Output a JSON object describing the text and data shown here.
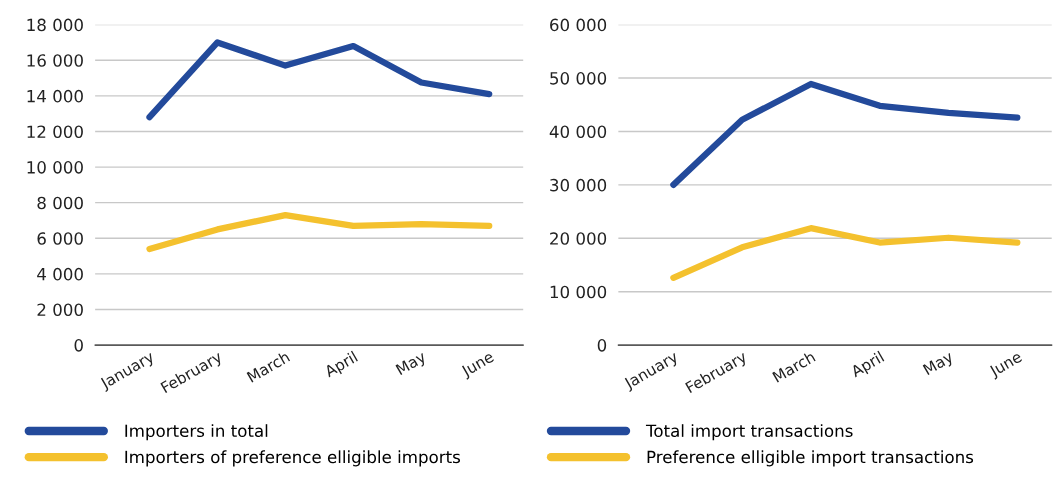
{
  "chart_data": [
    {
      "type": "line",
      "categories": [
        "January",
        "February",
        "March",
        "April",
        "May",
        "June"
      ],
      "series": [
        {
          "name": "Importers in total",
          "color": "#234a9b",
          "values": [
            12800,
            17000,
            15700,
            16800,
            14750,
            14100
          ]
        },
        {
          "name": "Importers of preference elligible imports",
          "color": "#f4c12e",
          "values": [
            5400,
            6500,
            7300,
            6700,
            6800,
            6700
          ]
        }
      ],
      "ylim": [
        0,
        18000
      ],
      "yticks": [
        0,
        {
          "value": 2000,
          "label": "2 000"
        },
        {
          "value": 4000,
          "label": "4 000"
        },
        {
          "value": 6000,
          "label": "6 000"
        },
        {
          "value": 8000,
          "label": "8 000"
        },
        {
          "value": 10000,
          "label": "10 000"
        },
        {
          "value": 12000,
          "label": "12 000"
        },
        {
          "value": 14000,
          "label": "14 000"
        },
        {
          "value": 16000,
          "label": "16 000"
        },
        {
          "value": 18000,
          "label": "18 000"
        }
      ],
      "grid": "y",
      "legend": "bottom",
      "marker": "none",
      "line_style": "solid"
    },
    {
      "type": "line",
      "categories": [
        "January",
        "February",
        "March",
        "April",
        "May",
        "June"
      ],
      "series": [
        {
          "name": "Total import transactions",
          "color": "#234a9b",
          "values": [
            30000,
            42200,
            48900,
            44800,
            43500,
            42600
          ]
        },
        {
          "name": "Preference elligible import transactions",
          "color": "#f4c12e",
          "values": [
            12600,
            18300,
            21900,
            19200,
            20100,
            19200
          ]
        }
      ],
      "ylim": [
        0,
        60000
      ],
      "yticks": [
        0,
        {
          "value": 10000,
          "label": "10 000"
        },
        {
          "value": 20000,
          "label": "20 000"
        },
        {
          "value": 30000,
          "label": "30 000"
        },
        {
          "value": 40000,
          "label": "40 000"
        },
        {
          "value": 50000,
          "label": "50 000"
        },
        {
          "value": 60000,
          "label": "60 000"
        }
      ],
      "grid": "y",
      "legend": "bottom",
      "marker": "none",
      "line_style": "solid"
    }
  ]
}
